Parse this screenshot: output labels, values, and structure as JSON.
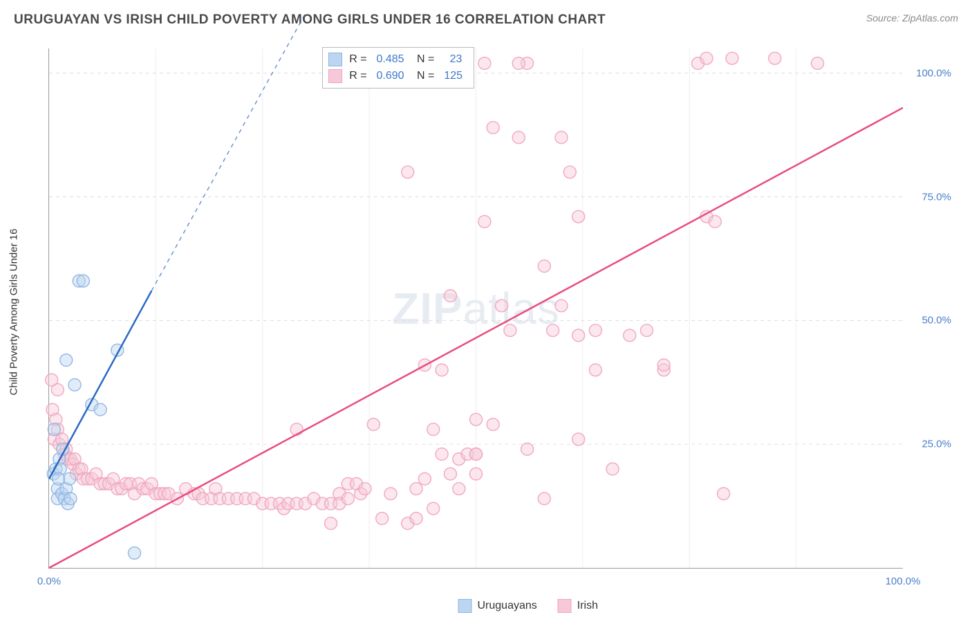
{
  "header": {
    "title": "URUGUAYAN VS IRISH CHILD POVERTY AMONG GIRLS UNDER 16 CORRELATION CHART",
    "source": "Source: ZipAtlas.com"
  },
  "chart": {
    "type": "scatter",
    "ylabel": "Child Poverty Among Girls Under 16",
    "ylabel_fontsize": 15,
    "title_fontsize": 19,
    "background_color": "#ffffff",
    "grid_color": "#dcdcdc",
    "axis_color": "#999999",
    "text_color": "#4a4a4a",
    "xlim": [
      0,
      100
    ],
    "ylim": [
      0,
      105
    ],
    "x_ticks": [
      0,
      100
    ],
    "x_tick_labels": [
      "0.0%",
      "100.0%"
    ],
    "y_ticks": [
      25,
      50,
      75,
      100
    ],
    "y_tick_labels": [
      "25.0%",
      "50.0%",
      "75.0%",
      "100.0%"
    ],
    "tick_color": "#4a7fc9",
    "vgrid_positions": [
      12.5,
      25,
      37.5,
      50,
      62.5,
      75,
      87.5
    ],
    "marker_radius": 9,
    "marker_opacity": 0.45,
    "line_width": 2.5,
    "watermark": {
      "text_bold": "ZIP",
      "text_rest": "atlas"
    },
    "series": {
      "uruguayans": {
        "label": "Uruguayans",
        "color": "#8cb5e3",
        "fill": "#bcd5f0",
        "line_color": "#2b68c4",
        "R": "0.485",
        "N": "23",
        "regression": {
          "x1": 0,
          "y1": 18,
          "x2": 12,
          "y2": 56,
          "dash_x2": 30,
          "dash_y2": 112
        },
        "points": [
          [
            0.5,
            19
          ],
          [
            0.8,
            20
          ],
          [
            1.0,
            16
          ],
          [
            1.2,
            22
          ],
          [
            0.6,
            28
          ],
          [
            1.0,
            14
          ],
          [
            1.5,
            15
          ],
          [
            1.8,
            14
          ],
          [
            2.0,
            16
          ],
          [
            2.2,
            13
          ],
          [
            2.5,
            14
          ],
          [
            1.3,
            20
          ],
          [
            1.6,
            24
          ],
          [
            2.0,
            42
          ],
          [
            3.0,
            37
          ],
          [
            3.5,
            58
          ],
          [
            4.0,
            58
          ],
          [
            5.0,
            33
          ],
          [
            6.0,
            32
          ],
          [
            8.0,
            44
          ],
          [
            10.0,
            3
          ],
          [
            2.4,
            18
          ],
          [
            1.1,
            18
          ]
        ]
      },
      "irish": {
        "label": "Irish",
        "color": "#f0a4be",
        "fill": "#f7c9d8",
        "line_color": "#e94b7c",
        "R": "0.690",
        "N": "125",
        "regression": {
          "x1": 0,
          "y1": 0,
          "x2": 100,
          "y2": 93
        },
        "points": [
          [
            0.3,
            38
          ],
          [
            0.4,
            32
          ],
          [
            0.6,
            26
          ],
          [
            0.8,
            30
          ],
          [
            1,
            28
          ],
          [
            1.2,
            25
          ],
          [
            1.5,
            26
          ],
          [
            1.8,
            23
          ],
          [
            2,
            24
          ],
          [
            2.2,
            22
          ],
          [
            2.5,
            22
          ],
          [
            2.8,
            21
          ],
          [
            3,
            22
          ],
          [
            3.2,
            19
          ],
          [
            3.5,
            20
          ],
          [
            3.8,
            20
          ],
          [
            4,
            18
          ],
          [
            4.5,
            18
          ],
          [
            5,
            18
          ],
          [
            5.5,
            19
          ],
          [
            6,
            17
          ],
          [
            6.5,
            17
          ],
          [
            7,
            17
          ],
          [
            7.5,
            18
          ],
          [
            8,
            16
          ],
          [
            8.5,
            16
          ],
          [
            9,
            17
          ],
          [
            9.5,
            17
          ],
          [
            10,
            15
          ],
          [
            10.5,
            17
          ],
          [
            11,
            16
          ],
          [
            11.5,
            16
          ],
          [
            12,
            17
          ],
          [
            12.5,
            15
          ],
          [
            13,
            15
          ],
          [
            13.5,
            15
          ],
          [
            14,
            15
          ],
          [
            15,
            14
          ],
          [
            16,
            16
          ],
          [
            17,
            15
          ],
          [
            17.5,
            15
          ],
          [
            18,
            14
          ],
          [
            19,
            14
          ],
          [
            19.5,
            16
          ],
          [
            20,
            14
          ],
          [
            21,
            14
          ],
          [
            22,
            14
          ],
          [
            23,
            14
          ],
          [
            24,
            14
          ],
          [
            25,
            13
          ],
          [
            26,
            13
          ],
          [
            27,
            13
          ],
          [
            27.5,
            12
          ],
          [
            28,
            13
          ],
          [
            29,
            13
          ],
          [
            30,
            13
          ],
          [
            31,
            14
          ],
          [
            32,
            13
          ],
          [
            33,
            9
          ],
          [
            34,
            15
          ],
          [
            35,
            17
          ],
          [
            36,
            17
          ],
          [
            36.5,
            15
          ],
          [
            37,
            16
          ],
          [
            38,
            29
          ],
          [
            39,
            10
          ],
          [
            40,
            15
          ],
          [
            42,
            9
          ],
          [
            43,
            10
          ],
          [
            45,
            12
          ],
          [
            44,
            41
          ],
          [
            42,
            80
          ],
          [
            46,
            40
          ],
          [
            47,
            55
          ],
          [
            48,
            22
          ],
          [
            49,
            23
          ],
          [
            50,
            23
          ],
          [
            50,
            30
          ],
          [
            50,
            23
          ],
          [
            51,
            70
          ],
          [
            52,
            89
          ],
          [
            52,
            29
          ],
          [
            53,
            53
          ],
          [
            55,
            87
          ],
          [
            56,
            102
          ],
          [
            56,
            24
          ],
          [
            58,
            14
          ],
          [
            58,
            61
          ],
          [
            59,
            48
          ],
          [
            60,
            87
          ],
          [
            60,
            53
          ],
          [
            61,
            80
          ],
          [
            62,
            26
          ],
          [
            62,
            71
          ],
          [
            64,
            40
          ],
          [
            64,
            48
          ],
          [
            66,
            20
          ],
          [
            68,
            47
          ],
          [
            70,
            48
          ],
          [
            72,
            40
          ],
          [
            72,
            41
          ],
          [
            76,
            102
          ],
          [
            77,
            103
          ],
          [
            77,
            71
          ],
          [
            78,
            70
          ],
          [
            79,
            15
          ],
          [
            80,
            103
          ],
          [
            62,
            47
          ],
          [
            85,
            103
          ],
          [
            90,
            102
          ],
          [
            54,
            48
          ],
          [
            46,
            23
          ],
          [
            44,
            18
          ],
          [
            47,
            19
          ],
          [
            48,
            16
          ],
          [
            50,
            19
          ],
          [
            43,
            16
          ],
          [
            45,
            28
          ],
          [
            51,
            102
          ],
          [
            55,
            102
          ],
          [
            33,
            13
          ],
          [
            34,
            13
          ],
          [
            35,
            14
          ],
          [
            29,
            28
          ],
          [
            1,
            36
          ]
        ]
      }
    }
  },
  "legend_bottom": {
    "items": [
      {
        "key": "uruguayans",
        "label": "Uruguayans"
      },
      {
        "key": "irish",
        "label": "Irish"
      }
    ]
  }
}
